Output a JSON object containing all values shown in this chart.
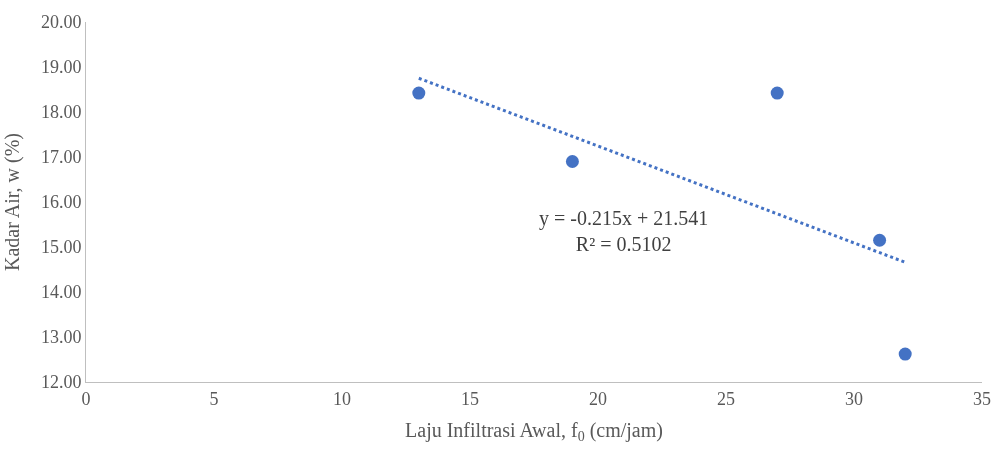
{
  "chart_data": {
    "type": "scatter",
    "xlabel": "Laju Infiltrasi Awal, f$_{0}$ (cm/jam)",
    "ylabel": "Kadar Air, w (%)",
    "annotations": [
      "y = -0.215x + 21.541\nR² = 0.5102"
    ],
    "series": [
      {
        "color": "#4472c4",
        "x": [
          13,
          19,
          27,
          31,
          32
        ],
        "values": [
          18.42,
          16.9,
          18.42,
          15.15,
          12.62
        ],
        "marker": "circle"
      },
      {
        "type": "line",
        "color": "#4472c4",
        "x": [
          13,
          32
        ],
        "values": [
          18.75,
          14.66
        ],
        "line_style": "dotted",
        "marker": "none"
      }
    ],
    "xlim": [
      0,
      35
    ],
    "xticks": [
      0,
      5,
      10,
      15,
      20,
      25,
      30,
      35
    ],
    "ylim": [
      12,
      20
    ],
    "yticks": [
      {
        "value": 12,
        "label": "12.00"
      },
      {
        "value": 13,
        "label": "13.00"
      },
      {
        "value": 14,
        "label": "14.00"
      },
      {
        "value": 15,
        "label": "15.00"
      },
      {
        "value": 16,
        "label": "16.00"
      },
      {
        "value": 17,
        "label": "17.00"
      },
      {
        "value": 18,
        "label": "18.00"
      },
      {
        "value": 19,
        "label": "19.00"
      },
      {
        "value": 20,
        "label": "20.00"
      }
    ]
  }
}
